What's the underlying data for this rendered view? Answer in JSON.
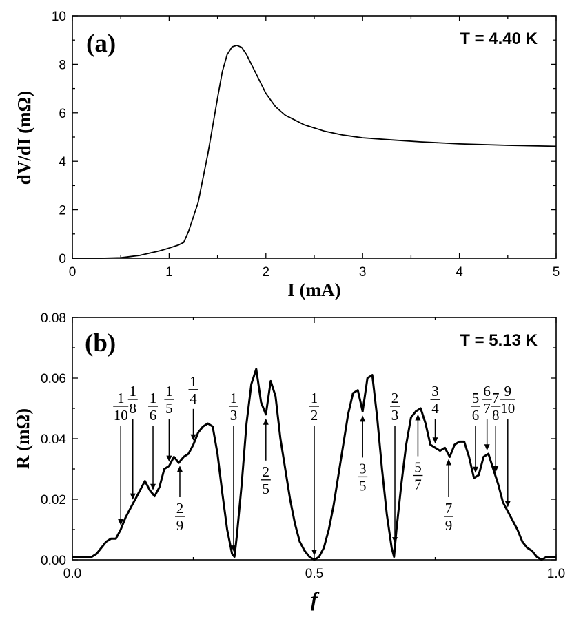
{
  "chart_data": [
    {
      "id": "a",
      "type": "line",
      "panel_label": "(a)",
      "annotation": "T = 4.40 K",
      "xlabel": "I (mA)",
      "ylabel": "dV/dI (mΩ)",
      "xlim": [
        0,
        5
      ],
      "ylim": [
        0,
        10
      ],
      "xticks": [
        0,
        1,
        2,
        3,
        4,
        5
      ],
      "xtick_labels": [
        "0",
        "1",
        "2",
        "3",
        "4",
        "5"
      ],
      "yticks": [
        0,
        2,
        4,
        6,
        8,
        10
      ],
      "ytick_labels": [
        "0",
        "2",
        "4",
        "6",
        "8",
        "10"
      ],
      "series": [
        {
          "name": "dV/dI",
          "x": [
            0.0,
            0.3,
            0.5,
            0.7,
            0.9,
            1.0,
            1.1,
            1.15,
            1.2,
            1.3,
            1.4,
            1.5,
            1.55,
            1.6,
            1.65,
            1.7,
            1.75,
            1.8,
            1.9,
            2.0,
            2.1,
            2.2,
            2.4,
            2.6,
            2.8,
            3.0,
            3.3,
            3.6,
            4.0,
            4.5,
            5.0
          ],
          "y": [
            0.0,
            0.0,
            0.02,
            0.12,
            0.3,
            0.42,
            0.55,
            0.65,
            1.1,
            2.3,
            4.3,
            6.6,
            7.7,
            8.4,
            8.72,
            8.78,
            8.7,
            8.4,
            7.6,
            6.8,
            6.25,
            5.9,
            5.5,
            5.25,
            5.08,
            4.97,
            4.88,
            4.8,
            4.72,
            4.66,
            4.62
          ]
        }
      ]
    },
    {
      "id": "b",
      "type": "line",
      "panel_label": "(b)",
      "annotation": "T = 5.13 K",
      "xlabel": "f",
      "ylabel": "R (mΩ)",
      "xlim": [
        0,
        1
      ],
      "ylim": [
        0,
        0.08
      ],
      "xticks": [
        0,
        0.5,
        1
      ],
      "xtick_labels": [
        "0.0",
        "0.5",
        "1.0"
      ],
      "yticks": [
        0,
        0.02,
        0.04,
        0.06,
        0.08
      ],
      "ytick_labels": [
        "0.00",
        "0.02",
        "0.04",
        "0.06",
        "0.08"
      ],
      "series": [
        {
          "name": "R",
          "x": [
            0.0,
            0.02,
            0.04,
            0.05,
            0.06,
            0.07,
            0.08,
            0.09,
            0.1,
            0.11,
            0.12,
            0.13,
            0.14,
            0.15,
            0.16,
            0.17,
            0.18,
            0.19,
            0.2,
            0.21,
            0.22,
            0.23,
            0.24,
            0.25,
            0.26,
            0.27,
            0.28,
            0.29,
            0.3,
            0.31,
            0.32,
            0.33,
            0.335,
            0.34,
            0.35,
            0.36,
            0.37,
            0.38,
            0.39,
            0.4,
            0.41,
            0.42,
            0.43,
            0.44,
            0.45,
            0.46,
            0.47,
            0.48,
            0.49,
            0.5,
            0.51,
            0.52,
            0.53,
            0.54,
            0.55,
            0.56,
            0.57,
            0.58,
            0.59,
            0.6,
            0.61,
            0.62,
            0.63,
            0.64,
            0.65,
            0.66,
            0.665,
            0.67,
            0.68,
            0.69,
            0.7,
            0.71,
            0.72,
            0.73,
            0.74,
            0.75,
            0.76,
            0.77,
            0.78,
            0.79,
            0.8,
            0.81,
            0.82,
            0.83,
            0.84,
            0.85,
            0.86,
            0.87,
            0.88,
            0.89,
            0.9,
            0.91,
            0.92,
            0.93,
            0.94,
            0.95,
            0.96,
            0.97,
            0.98,
            1.0
          ],
          "y": [
            0.001,
            0.001,
            0.001,
            0.002,
            0.004,
            0.006,
            0.007,
            0.007,
            0.01,
            0.014,
            0.017,
            0.02,
            0.023,
            0.026,
            0.023,
            0.021,
            0.024,
            0.03,
            0.031,
            0.034,
            0.032,
            0.034,
            0.035,
            0.038,
            0.042,
            0.044,
            0.045,
            0.044,
            0.035,
            0.022,
            0.01,
            0.002,
            0.001,
            0.008,
            0.025,
            0.045,
            0.058,
            0.063,
            0.052,
            0.048,
            0.059,
            0.054,
            0.04,
            0.03,
            0.02,
            0.012,
            0.006,
            0.003,
            0.001,
            0.0,
            0.001,
            0.004,
            0.01,
            0.018,
            0.028,
            0.038,
            0.048,
            0.055,
            0.056,
            0.049,
            0.06,
            0.061,
            0.047,
            0.03,
            0.015,
            0.004,
            0.001,
            0.01,
            0.025,
            0.038,
            0.047,
            0.049,
            0.05,
            0.045,
            0.038,
            0.037,
            0.036,
            0.037,
            0.034,
            0.038,
            0.039,
            0.039,
            0.034,
            0.027,
            0.028,
            0.034,
            0.035,
            0.03,
            0.025,
            0.019,
            0.016,
            0.013,
            0.01,
            0.006,
            0.004,
            0.003,
            0.001,
            0.0,
            0.001,
            0.001
          ]
        }
      ],
      "fraction_annotations": [
        {
          "num": "1",
          "den": "10",
          "f": 0.1,
          "dir": "down"
        },
        {
          "num": "1",
          "den": "8",
          "f": 0.125,
          "dir": "down"
        },
        {
          "num": "1",
          "den": "6",
          "f": 0.1667,
          "dir": "down"
        },
        {
          "num": "1",
          "den": "5",
          "f": 0.2,
          "dir": "down"
        },
        {
          "num": "2",
          "den": "9",
          "f": 0.2222,
          "dir": "up"
        },
        {
          "num": "1",
          "den": "4",
          "f": 0.25,
          "dir": "down"
        },
        {
          "num": "1",
          "den": "3",
          "f": 0.3333,
          "dir": "down"
        },
        {
          "num": "2",
          "den": "5",
          "f": 0.4,
          "dir": "up"
        },
        {
          "num": "1",
          "den": "2",
          "f": 0.5,
          "dir": "down"
        },
        {
          "num": "3",
          "den": "5",
          "f": 0.6,
          "dir": "up"
        },
        {
          "num": "2",
          "den": "3",
          "f": 0.6667,
          "dir": "down"
        },
        {
          "num": "5",
          "den": "7",
          "f": 0.7143,
          "dir": "up"
        },
        {
          "num": "3",
          "den": "4",
          "f": 0.75,
          "dir": "down"
        },
        {
          "num": "7",
          "den": "9",
          "f": 0.7778,
          "dir": "up"
        },
        {
          "num": "5",
          "den": "6",
          "f": 0.8333,
          "dir": "down"
        },
        {
          "num": "6",
          "den": "7",
          "f": 0.8571,
          "dir": "down"
        },
        {
          "num": "7",
          "den": "8",
          "f": 0.875,
          "dir": "down"
        },
        {
          "num": "9",
          "den": "10",
          "f": 0.9,
          "dir": "down"
        }
      ]
    }
  ]
}
